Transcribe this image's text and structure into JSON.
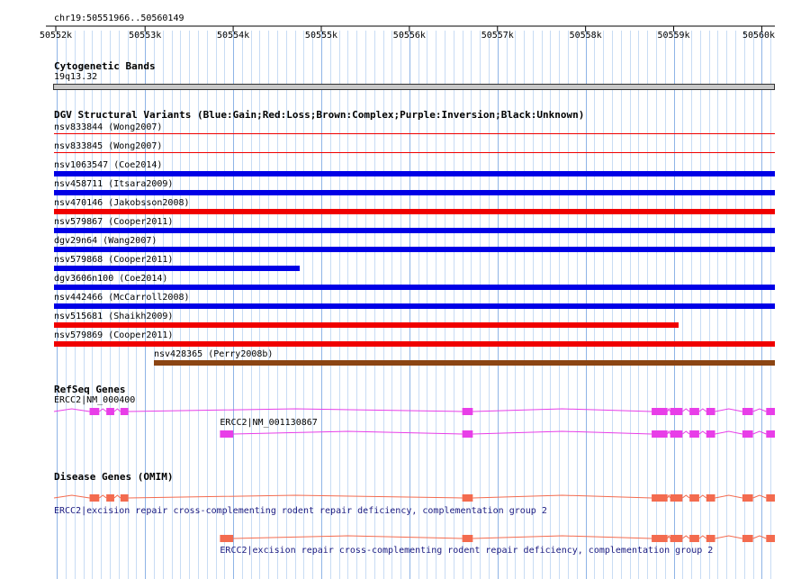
{
  "ruler": {
    "location": "chr19:50551966..50560149",
    "ticks": [
      "50552k",
      "50553k",
      "50554k",
      "50555k",
      "50556k",
      "50557k",
      "50558k",
      "50559k",
      "50560k"
    ]
  },
  "cytoband": {
    "title": "Cytogenetic Bands",
    "band": "19q13.32"
  },
  "dgv": {
    "title": "DGV Structural Variants (Blue:Gain;Red:Loss;Brown:Complex;Purple:Inversion;Black:Unknown)",
    "colors": {
      "gain": "#0000e6",
      "loss": "#f00000",
      "complex": "#8b4513"
    },
    "variants": [
      {
        "label": "nsv833844 (Wong2007)",
        "type": "loss",
        "start": 50551966,
        "end": 50560149,
        "thin": true
      },
      {
        "label": "nsv833845 (Wong2007)",
        "type": "loss",
        "start": 50551966,
        "end": 50560149,
        "thin": true
      },
      {
        "label": "nsv1063547 (Coe2014)",
        "type": "gain",
        "start": 50551966,
        "end": 50560149
      },
      {
        "label": "nsv458711 (Itsara2009)",
        "type": "gain",
        "start": 50551966,
        "end": 50560149
      },
      {
        "label": "nsv470146 (Jakobsson2008)",
        "type": "loss",
        "start": 50551966,
        "end": 50560149
      },
      {
        "label": "nsv579867 (Cooper2011)",
        "type": "gain",
        "start": 50551966,
        "end": 50560149
      },
      {
        "label": "dgv29n64 (Wang2007)",
        "type": "gain",
        "start": 50551966,
        "end": 50560149
      },
      {
        "label": "nsv579868 (Cooper2011)",
        "type": "gain",
        "start": 50551966,
        "end": 50554750
      },
      {
        "label": "dgv3606n100 (Coe2014)",
        "type": "gain",
        "start": 50551966,
        "end": 50560149
      },
      {
        "label": "nsv442466 (McCarroll2008)",
        "type": "gain",
        "start": 50551966,
        "end": 50560149
      },
      {
        "label": "nsv515681 (Shaikh2009)",
        "type": "loss",
        "start": 50551966,
        "end": 50559060
      },
      {
        "label": "nsv579869 (Cooper2011)",
        "type": "loss",
        "start": 50551966,
        "end": 50560149
      },
      {
        "label": "nsv428365 (Perry2008b)",
        "type": "complex",
        "start": 50553100,
        "end": 50560149
      }
    ]
  },
  "refseq": {
    "title": "RefSeq Genes",
    "color": "#e83ee8",
    "transcripts": [
      {
        "label": "ERCC2|NM_000400",
        "start": 50551966,
        "end": 50560149,
        "exons": [
          [
            50552370,
            50552480
          ],
          [
            50552560,
            50552650
          ],
          [
            50552720,
            50552810
          ],
          [
            50556600,
            50556720
          ],
          [
            50558750,
            50558930
          ],
          [
            50558960,
            50559100
          ],
          [
            50559180,
            50559290
          ],
          [
            50559370,
            50559470
          ],
          [
            50559780,
            50559900
          ],
          [
            50560050,
            50560149
          ]
        ]
      },
      {
        "label": "ERCC2|NM_001130867",
        "start": 50553850,
        "end": 50560149,
        "exons": [
          [
            50553850,
            50554000
          ],
          [
            50556600,
            50556720
          ],
          [
            50558750,
            50558930
          ],
          [
            50558960,
            50559100
          ],
          [
            50559180,
            50559290
          ],
          [
            50559370,
            50559470
          ],
          [
            50559780,
            50559900
          ],
          [
            50560050,
            50560149
          ]
        ]
      }
    ]
  },
  "omim": {
    "title": "Disease Genes (OMIM)",
    "color": "#f36b4f",
    "label_color": "#1a1a80",
    "genes": [
      {
        "label": "ERCC2|excision repair cross-complementing rodent repair deficiency, complementation group 2",
        "start": 50551966,
        "end": 50560149,
        "exons": [
          [
            50552370,
            50552480
          ],
          [
            50552560,
            50552650
          ],
          [
            50552720,
            50552810
          ],
          [
            50556600,
            50556720
          ],
          [
            50558750,
            50558930
          ],
          [
            50558960,
            50559100
          ],
          [
            50559180,
            50559290
          ],
          [
            50559370,
            50559470
          ],
          [
            50559780,
            50559900
          ],
          [
            50560050,
            50560149
          ]
        ]
      },
      {
        "label": "ERCC2|excision repair cross-complementing rodent repair deficiency, complementation group 2",
        "start": 50553850,
        "end": 50560149,
        "exons": [
          [
            50553850,
            50554000
          ],
          [
            50556600,
            50556720
          ],
          [
            50558750,
            50558930
          ],
          [
            50558960,
            50559100
          ],
          [
            50559180,
            50559290
          ],
          [
            50559370,
            50559470
          ],
          [
            50559780,
            50559900
          ],
          [
            50560050,
            50560149
          ]
        ]
      }
    ]
  }
}
